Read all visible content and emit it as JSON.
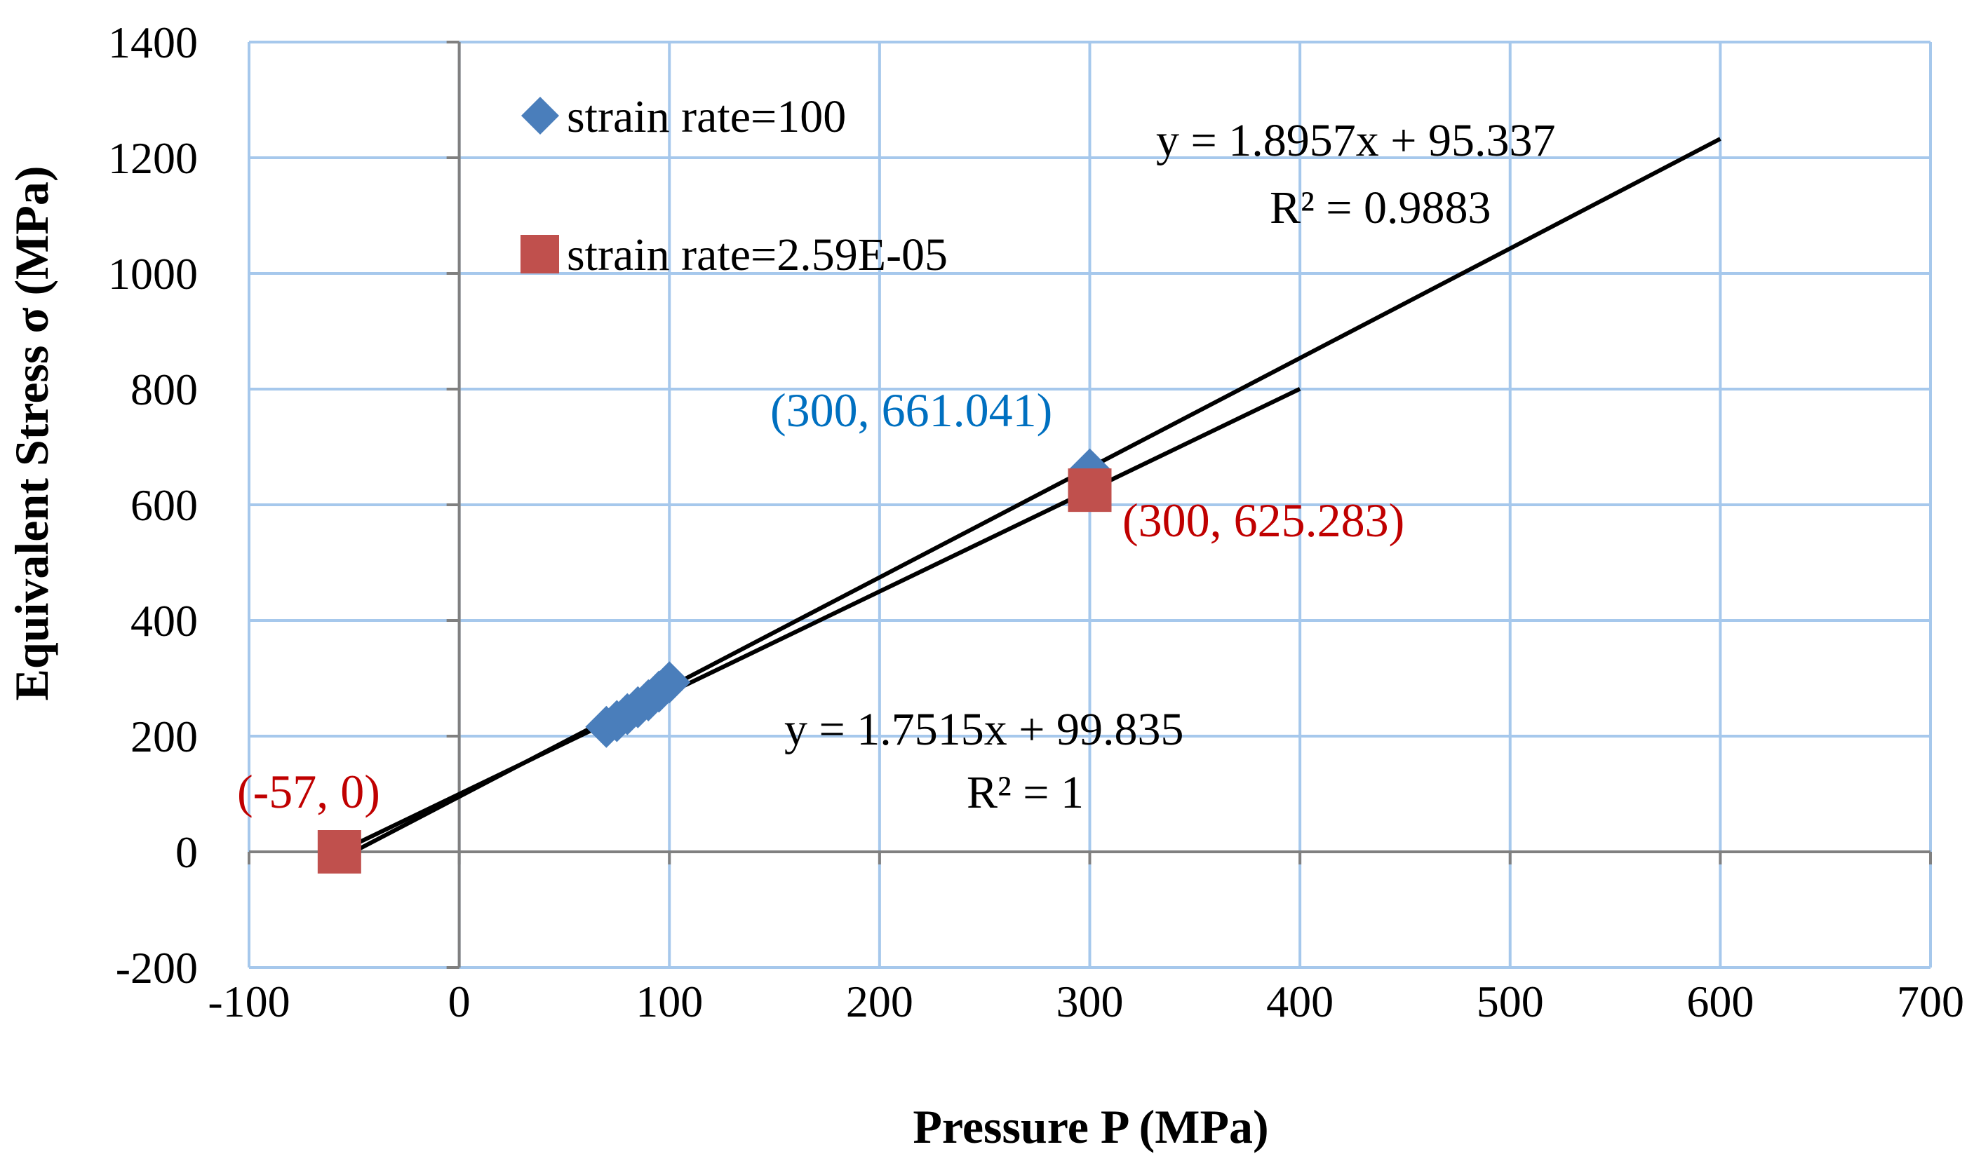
{
  "chart_data": {
    "type": "scatter",
    "xlabel": "Pressure P (MPa)",
    "ylabel": "Equivalent Stress σ (MPa)",
    "xlim": [
      -100,
      700
    ],
    "ylim": [
      -200,
      1400
    ],
    "xticks": [
      -100,
      0,
      100,
      200,
      300,
      400,
      500,
      600,
      700
    ],
    "yticks": [
      -200,
      0,
      200,
      400,
      600,
      800,
      1000,
      1200,
      1400
    ],
    "grid": true,
    "legend_position": "top-left",
    "series": [
      {
        "name": "strain rate=100",
        "marker": "diamond",
        "color": "#4a7ebb",
        "x": [
          70,
          75,
          80,
          85,
          90,
          95,
          100,
          300
        ],
        "y": [
          216,
          226,
          238,
          250,
          262,
          277,
          293,
          661.041
        ]
      },
      {
        "name": "strain rate=2.59E-05",
        "marker": "square",
        "color": "#c0504d",
        "x": [
          -57,
          300
        ],
        "y": [
          0,
          625.283
        ]
      }
    ],
    "trendlines": [
      {
        "series": "strain rate=100",
        "slope": 1.8957,
        "intercept": 95.337,
        "x_range": [
          -57,
          600
        ],
        "equation": "y = 1.8957x + 95.337",
        "r2": "R² = 0.9883"
      },
      {
        "series": "strain rate=2.59E-05",
        "slope": 1.7515,
        "intercept": 99.835,
        "x_range": [
          -57,
          400
        ],
        "equation": "y = 1.7515x + 99.835",
        "r2": "R² = 1"
      }
    ],
    "annotations": [
      {
        "text": "(300, 661.041)",
        "color": "#0070c0"
      },
      {
        "text": "(300, 625.283)",
        "color": "#c00000"
      },
      {
        "text": "(-57, 0)",
        "color": "#c00000"
      }
    ]
  }
}
